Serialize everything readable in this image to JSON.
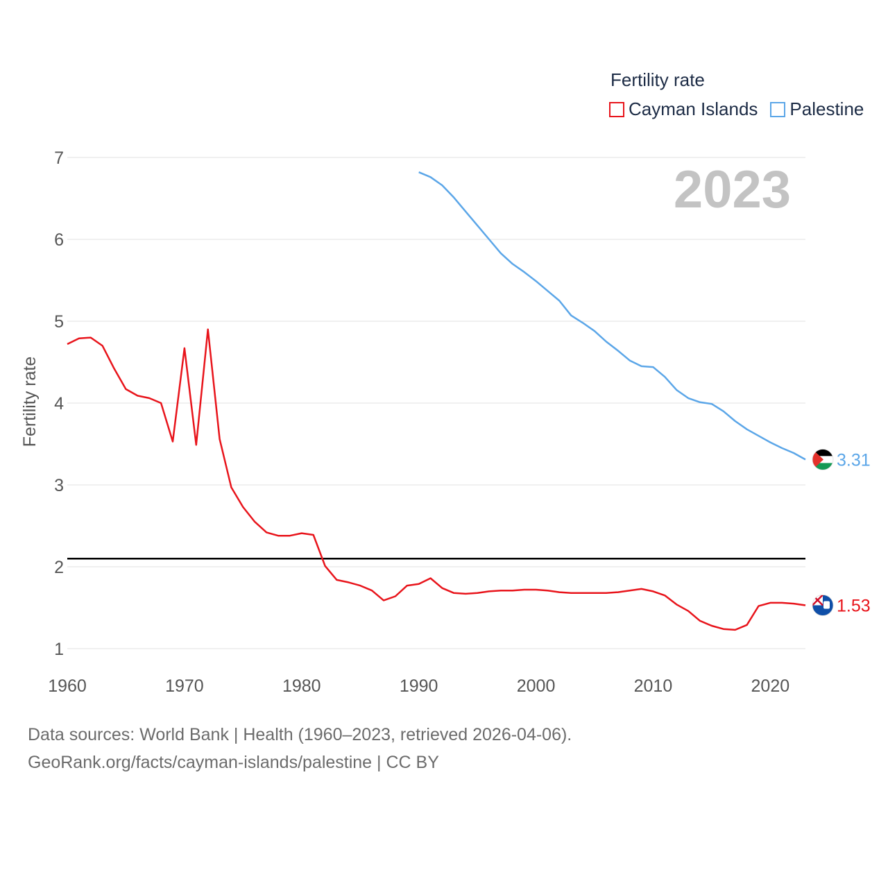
{
  "legend": {
    "title": "Fertility rate",
    "items": [
      {
        "label": "Cayman Islands",
        "color": "#e8141b"
      },
      {
        "label": "Palestine",
        "color": "#5ba6e8"
      }
    ]
  },
  "year_overlay": "2023",
  "footer": {
    "line1": "Data sources: World Bank | Health (1960–2023, retrieved 2026-04-06).",
    "line2": "GeoRank.org/facts/cayman-islands/palestine | CC BY"
  },
  "chart_data": {
    "type": "line",
    "title": "Fertility rate",
    "ylabel": "Fertility rate",
    "xlabel": "",
    "xlim": [
      1960,
      2023
    ],
    "ylim": [
      0.8,
      7.0
    ],
    "xticks": [
      1960,
      1970,
      1980,
      1990,
      2000,
      2010,
      2020
    ],
    "yticks": [
      1,
      2,
      3,
      4,
      5,
      6,
      7
    ],
    "grid": true,
    "legend_position": "top-right",
    "reference_line": {
      "y": 2.1,
      "color": "#000000"
    },
    "series": [
      {
        "name": "Cayman Islands",
        "color": "#e8141b",
        "end_label": "1.53",
        "x": [
          1960,
          1961,
          1962,
          1963,
          1964,
          1965,
          1966,
          1967,
          1968,
          1969,
          1970,
          1971,
          1972,
          1973,
          1974,
          1975,
          1976,
          1977,
          1978,
          1979,
          1980,
          1981,
          1982,
          1983,
          1984,
          1985,
          1986,
          1987,
          1988,
          1989,
          1990,
          1991,
          1992,
          1993,
          1994,
          1995,
          1996,
          1997,
          1998,
          1999,
          2000,
          2001,
          2002,
          2003,
          2004,
          2005,
          2006,
          2007,
          2008,
          2009,
          2010,
          2011,
          2012,
          2013,
          2014,
          2015,
          2016,
          2017,
          2018,
          2019,
          2020,
          2021,
          2022,
          2023
        ],
        "y": [
          4.72,
          4.79,
          4.8,
          4.7,
          4.42,
          4.17,
          4.09,
          4.06,
          4.0,
          3.53,
          4.67,
          3.49,
          4.9,
          3.56,
          2.97,
          2.73,
          2.55,
          2.42,
          2.38,
          2.38,
          2.41,
          2.39,
          2.01,
          1.84,
          1.81,
          1.77,
          1.71,
          1.59,
          1.64,
          1.77,
          1.79,
          1.86,
          1.74,
          1.68,
          1.67,
          1.68,
          1.7,
          1.71,
          1.71,
          1.72,
          1.72,
          1.71,
          1.69,
          1.68,
          1.68,
          1.68,
          1.68,
          1.69,
          1.71,
          1.73,
          1.7,
          1.65,
          1.54,
          1.46,
          1.34,
          1.28,
          1.24,
          1.23,
          1.29,
          1.52,
          1.56,
          1.56,
          1.55,
          1.53
        ]
      },
      {
        "name": "Palestine",
        "color": "#5ba6e8",
        "end_label": "3.31",
        "x": [
          1990,
          1991,
          1992,
          1993,
          1994,
          1995,
          1996,
          1997,
          1998,
          1999,
          2000,
          2001,
          2002,
          2003,
          2004,
          2005,
          2006,
          2007,
          2008,
          2009,
          2010,
          2011,
          2012,
          2013,
          2014,
          2015,
          2016,
          2017,
          2018,
          2019,
          2020,
          2021,
          2022,
          2023
        ],
        "y": [
          6.82,
          6.76,
          6.66,
          6.51,
          6.34,
          6.17,
          6.0,
          5.83,
          5.7,
          5.6,
          5.49,
          5.37,
          5.25,
          5.07,
          4.98,
          4.88,
          4.75,
          4.64,
          4.52,
          4.45,
          4.44,
          4.32,
          4.16,
          4.06,
          4.01,
          3.99,
          3.9,
          3.78,
          3.68,
          3.6,
          3.52,
          3.45,
          3.39,
          3.31
        ]
      }
    ]
  }
}
